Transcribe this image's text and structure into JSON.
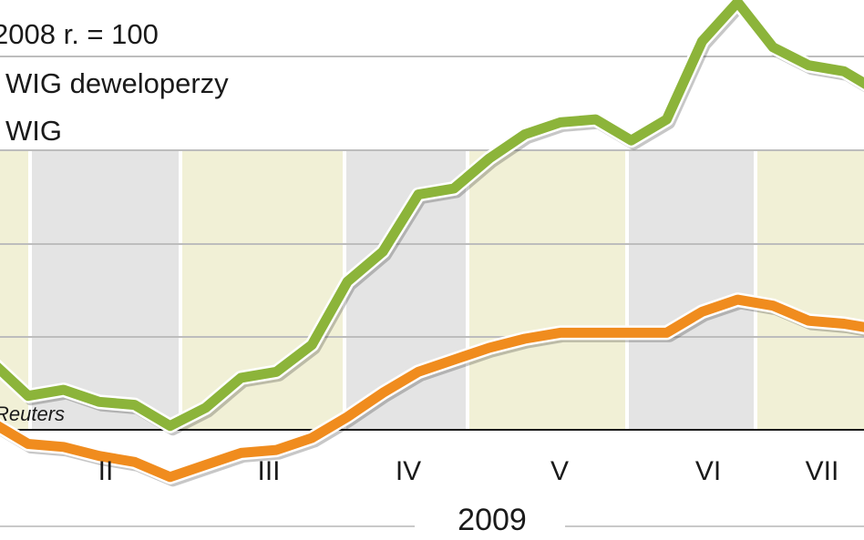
{
  "chart_data": {
    "type": "line",
    "subtitle": "2008 r. = 100",
    "source": "Reuters",
    "year_label": "2009",
    "categories": [
      "II",
      "III",
      "IV",
      "V",
      "VI",
      "VII"
    ],
    "x": [
      0,
      1,
      2,
      3,
      4,
      5,
      6,
      7,
      8,
      9,
      10,
      11,
      12,
      13,
      14,
      15,
      16,
      17,
      18,
      19,
      20,
      21,
      22,
      23,
      24,
      25
    ],
    "series": [
      {
        "name": "WIG deweloperzy",
        "color": "#8cb43a",
        "values": [
          94.7,
          93.6,
          93.8,
          93.4,
          93.3,
          92.6,
          93.2,
          94.2,
          94.4,
          95.3,
          97.4,
          98.4,
          100.3,
          100.5,
          101.5,
          102.3,
          102.7,
          102.8,
          102.1,
          102.8,
          105.4,
          106.7,
          105.2,
          104.6,
          104.4,
          103.7
        ]
      },
      {
        "name": "WIG",
        "color": "#f08c1e",
        "values": [
          92.7,
          92.0,
          91.9,
          91.6,
          91.4,
          90.9,
          91.3,
          91.7,
          91.8,
          92.2,
          92.9,
          93.7,
          94.4,
          94.8,
          95.2,
          95.5,
          95.7,
          95.7,
          95.7,
          95.7,
          96.4,
          96.8,
          96.6,
          96.1,
          96.0,
          95.8
        ]
      }
    ]
  }
}
